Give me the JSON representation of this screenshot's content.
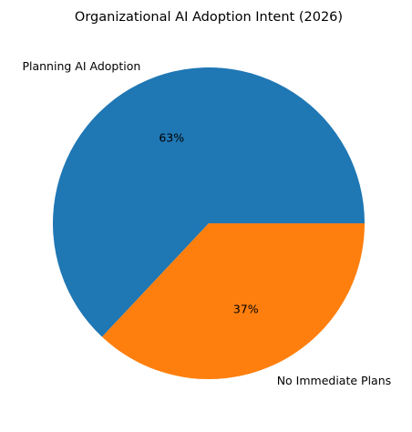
{
  "chart_data": {
    "type": "pie",
    "title": "Organizational AI Adoption Intent (2026)",
    "start_angle_deg": 0,
    "direction": "counterclockwise",
    "slices": [
      {
        "label": "Planning AI Adoption",
        "value": 63,
        "pct_label": "63%",
        "color": "#1f77b4"
      },
      {
        "label": "No Immediate Plans",
        "value": 37,
        "pct_label": "37%",
        "color": "#ff7f0e"
      }
    ]
  }
}
